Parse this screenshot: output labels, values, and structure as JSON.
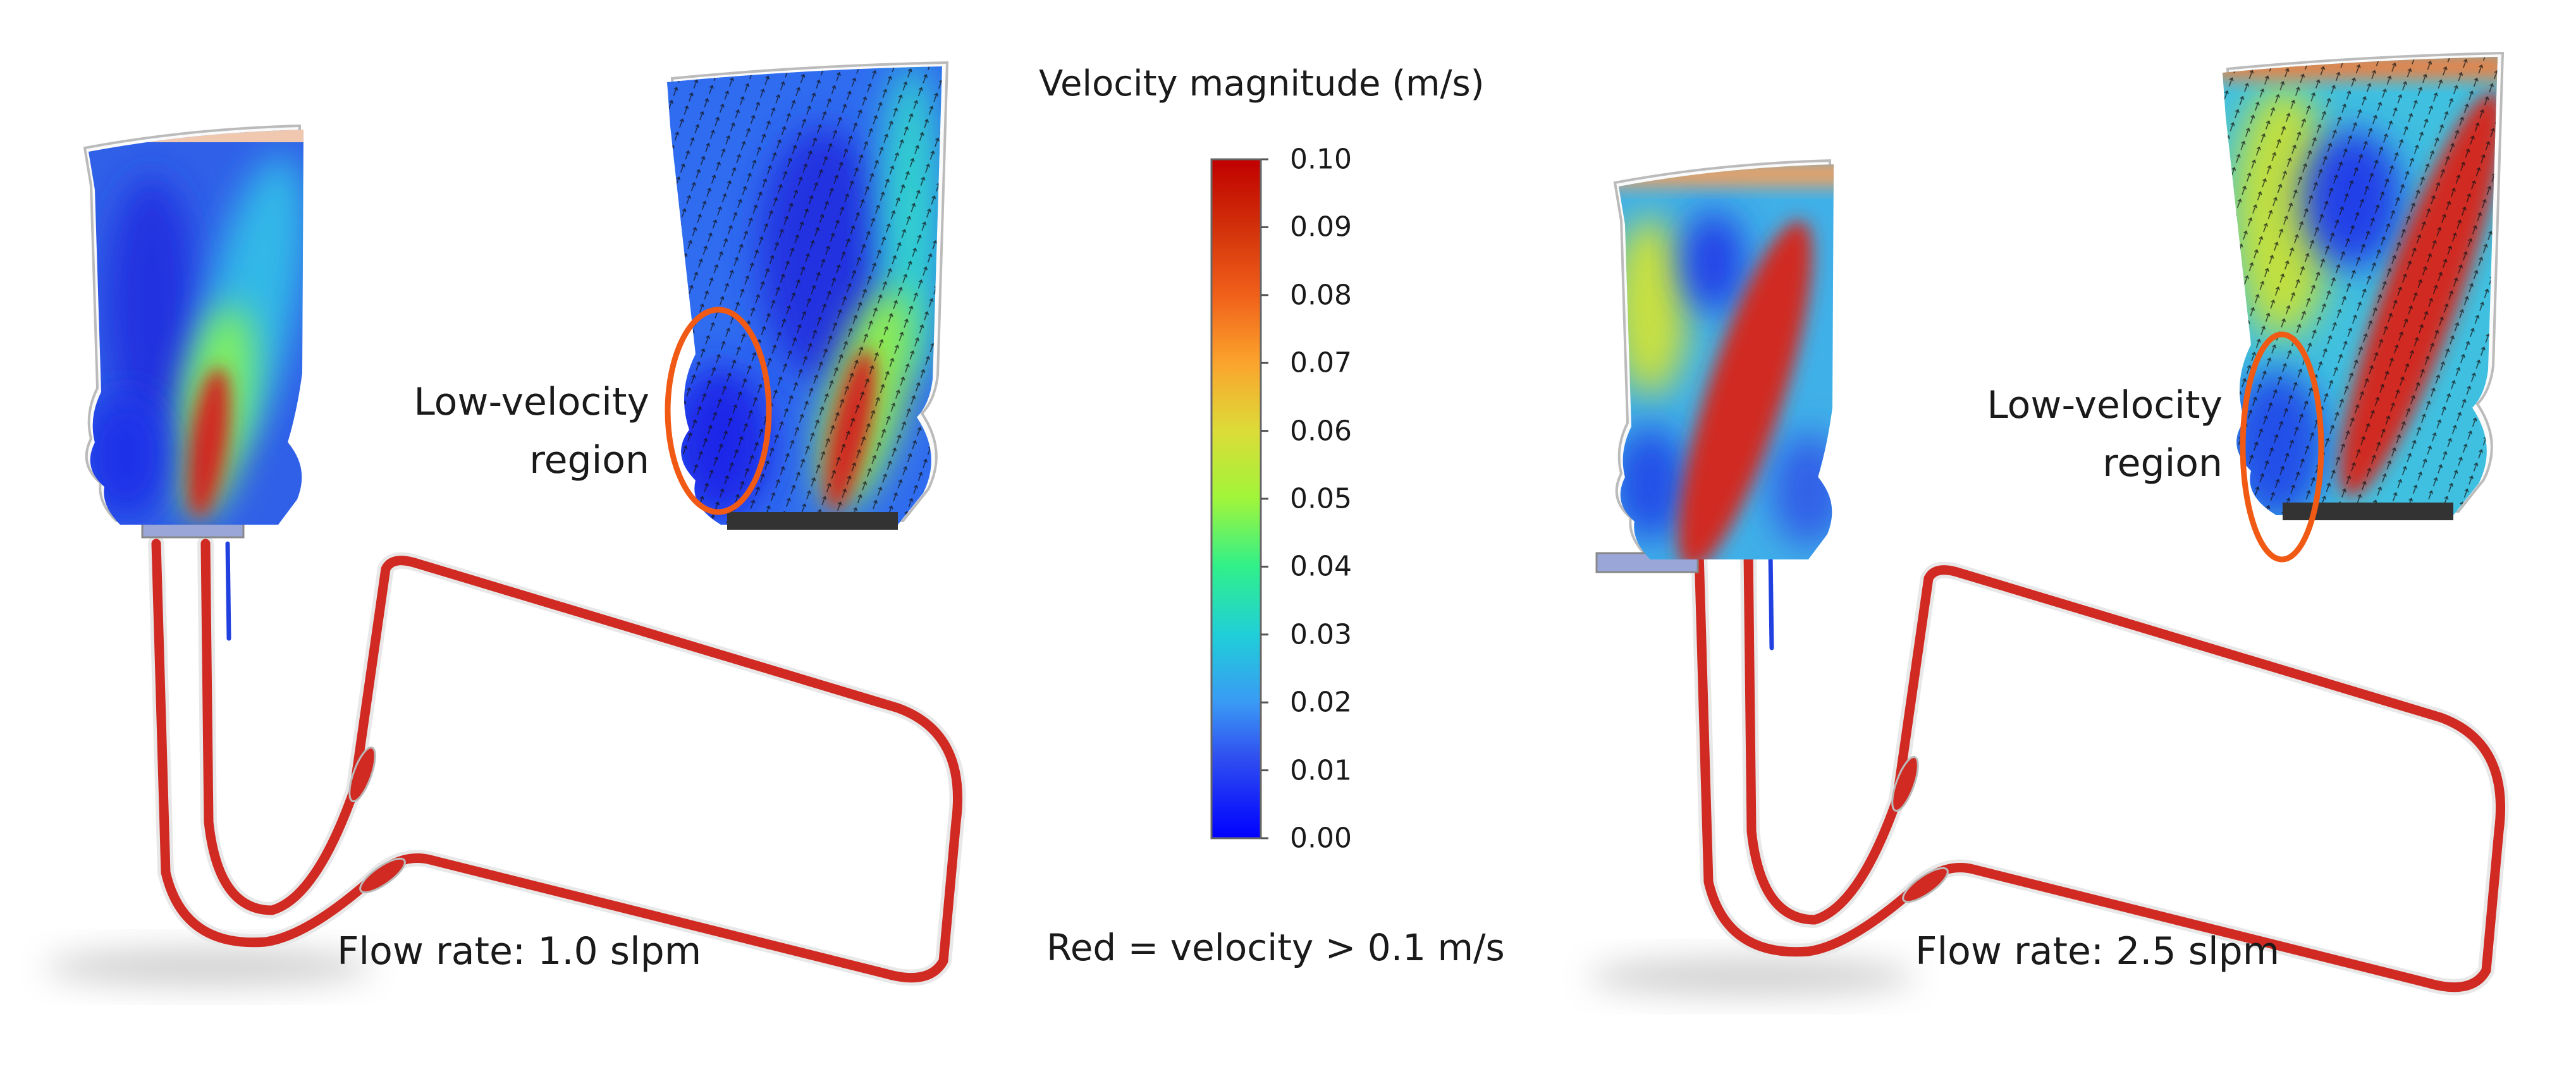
{
  "colorbar": {
    "title": "Velocity magnitude (m/s)",
    "note": "Red = velocity > 0.1 m/s",
    "min": 0.0,
    "max": 0.1,
    "ticks": [
      "0.10",
      "0.09",
      "0.08",
      "0.07",
      "0.06",
      "0.05",
      "0.04",
      "0.03",
      "0.02",
      "0.01",
      "0.00"
    ],
    "colors": [
      "#0000ff",
      "#3a8cf5",
      "#1fd2d2",
      "#22eea0",
      "#9af53a",
      "#dede36",
      "#fba62c",
      "#f06a1a",
      "#d2300a",
      "#c00000"
    ]
  },
  "panels": [
    {
      "flow_rate_label": "Flow rate: 1.0 slpm",
      "annotation": [
        "Low-velocity",
        "region"
      ]
    },
    {
      "flow_rate_label": "Flow rate: 2.5 slpm",
      "annotation": [
        "Low-velocity",
        "region"
      ]
    }
  ],
  "annotation_color": "#f05a14",
  "tube_color": "#d02a22"
}
